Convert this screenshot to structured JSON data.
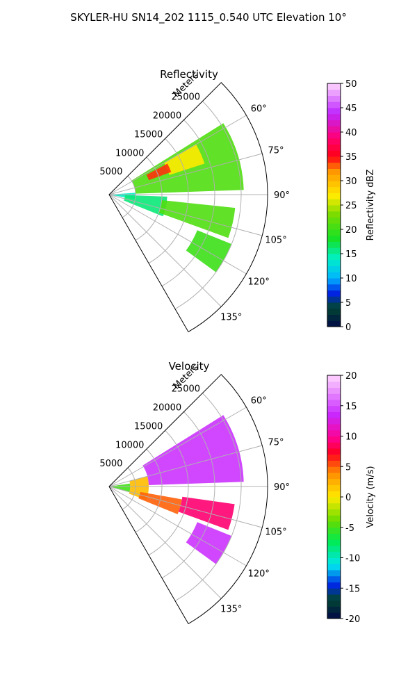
{
  "figure": {
    "title": "SKYLER-HU  SN14_202  1115_0.540 UTC Elevation 10°"
  },
  "chart_data": [
    {
      "type": "polar-sector",
      "title": "Reflectivity",
      "radial_label": "Meters",
      "radial_ticks": [
        5000,
        10000,
        15000,
        20000,
        25000
      ],
      "radial_tick_labels": [
        "5000",
        "10000",
        "15000",
        "20000",
        "25000"
      ],
      "rmax": 30000,
      "angle_range_deg": [
        45,
        150
      ],
      "angle_ticks": [
        60,
        75,
        90,
        105,
        120,
        135
      ],
      "angle_tick_labels": [
        "60°",
        "75°",
        "90°",
        "105°",
        "120°",
        "135°"
      ],
      "grid": true,
      "colorbar": {
        "label": "Reflectivity dBZ",
        "range": [
          0,
          50
        ],
        "ticks": [
          0,
          5,
          10,
          15,
          20,
          25,
          30,
          35,
          40,
          45,
          50
        ],
        "tick_labels": [
          "0",
          "5",
          "10",
          "15",
          "20",
          "25",
          "30",
          "35",
          "40",
          "45",
          "50"
        ]
      },
      "echo_regions": [
        {
          "r": [
            0,
            5000
          ],
          "az": [
            86,
            100
          ],
          "value": 14
        },
        {
          "r": [
            5000,
            25500
          ],
          "az": [
            58,
            88
          ],
          "value": 21
        },
        {
          "r": [
            12000,
            19000
          ],
          "az": [
            60,
            72
          ],
          "value": 27
        },
        {
          "r": [
            8000,
            12500
          ],
          "az": [
            62,
            70
          ],
          "value": 34
        },
        {
          "r": [
            3000,
            11000
          ],
          "az": [
            92,
            112
          ],
          "value": 16
        },
        {
          "r": [
            10000,
            24000
          ],
          "az": [
            96,
            110
          ],
          "value": 21
        },
        {
          "r": [
            18000,
            25000
          ],
          "az": [
            112,
            126
          ],
          "value": 20
        }
      ]
    },
    {
      "type": "polar-sector",
      "title": "Velocity",
      "radial_label": "Meters",
      "radial_ticks": [
        5000,
        10000,
        15000,
        20000,
        25000
      ],
      "radial_tick_labels": [
        "5000",
        "10000",
        "15000",
        "20000",
        "25000"
      ],
      "rmax": 30000,
      "angle_range_deg": [
        45,
        150
      ],
      "angle_ticks": [
        60,
        75,
        90,
        105,
        120,
        135
      ],
      "angle_tick_labels": [
        "60°",
        "75°",
        "90°",
        "105°",
        "120°",
        "135°"
      ],
      "grid": true,
      "colorbar": {
        "label": "Velocity (m/s)",
        "range": [
          -20,
          20
        ],
        "ticks": [
          -20,
          -15,
          -10,
          -5,
          0,
          5,
          10,
          15,
          20
        ],
        "tick_labels": [
          "-20",
          "-15",
          "-10",
          "-5",
          "0",
          "5",
          "10",
          "15",
          "20"
        ]
      },
      "echo_regions": [
        {
          "r": [
            0,
            4000
          ],
          "az": [
            82,
            106
          ],
          "value": -5
        },
        {
          "r": [
            4000,
            7500
          ],
          "az": [
            75,
            110
          ],
          "value": 2
        },
        {
          "r": [
            7500,
            25500
          ],
          "az": [
            58,
            88
          ],
          "value": 14
        },
        {
          "r": [
            6000,
            14000
          ],
          "az": [
            100,
            112
          ],
          "value": 5
        },
        {
          "r": [
            14000,
            24000
          ],
          "az": [
            98,
            110
          ],
          "value": 9
        },
        {
          "r": [
            18000,
            25000
          ],
          "az": [
            112,
            126
          ],
          "value": 14
        }
      ]
    }
  ]
}
